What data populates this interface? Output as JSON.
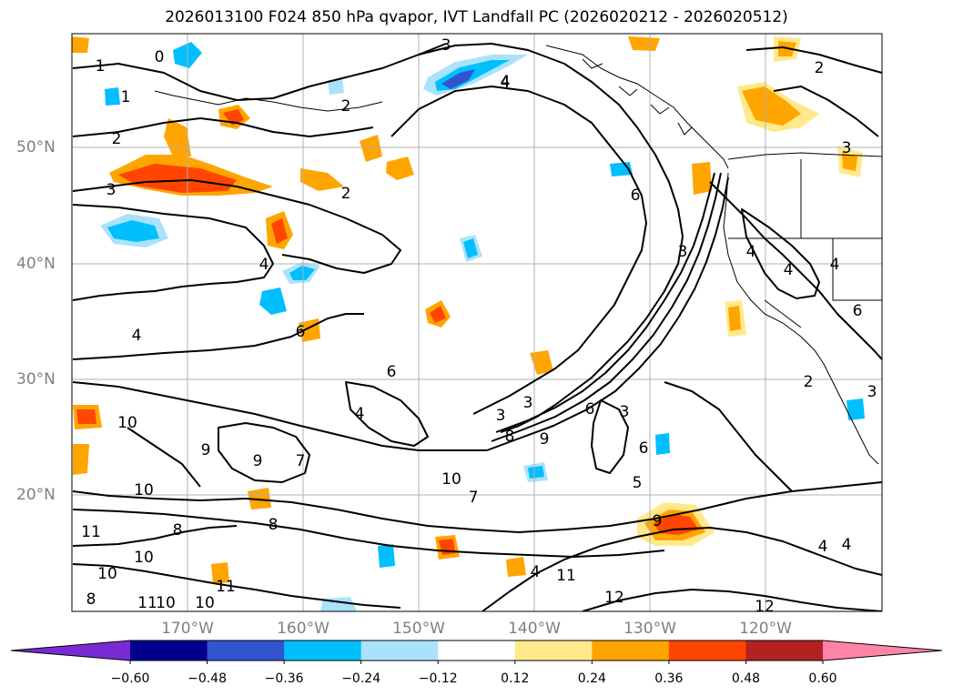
{
  "title": "2026013100 F024 850 hPa qvapor, IVT Landfall PC (2026020212 - 2026020512)",
  "axes": {
    "lat_labels": [
      "50°N",
      "40°N",
      "30°N",
      "20°N"
    ],
    "lon_labels": [
      "170°W",
      "160°W",
      "150°W",
      "140°W",
      "130°W",
      "120°W"
    ]
  },
  "contour_labels": [
    "1",
    "0",
    "1",
    "2",
    "3",
    "2",
    "3",
    "4",
    "2",
    "4",
    "4",
    "6",
    "6",
    "4",
    "9",
    "7",
    "9",
    "8",
    "8",
    "10",
    "10",
    "11",
    "10",
    "11",
    "10",
    "10",
    "8",
    "11",
    "10",
    "7",
    "3",
    "8",
    "3",
    "9",
    "6",
    "3",
    "6",
    "5",
    "6",
    "3",
    "4",
    "4",
    "4",
    "6",
    "2",
    "3",
    "10",
    "11",
    "12",
    "12",
    "4",
    "4",
    "9",
    "2",
    "3",
    "4",
    "4"
  ],
  "colorbar": {
    "colors": [
      "#7a2ad2",
      "#8a2be2",
      "#00008b",
      "#3155d0",
      "#00bfff",
      "#abe2fb",
      "#ffffff",
      "#ffe98a",
      "#ffa500",
      "#ff4500",
      "#b22222",
      "#ff85a7",
      "#ff85a7"
    ],
    "tick_labels": [
      "−0.60",
      "−0.48",
      "−0.36",
      "−0.24",
      "−0.12",
      "0.12",
      "0.24",
      "0.36",
      "0.48",
      "0.60"
    ]
  }
}
